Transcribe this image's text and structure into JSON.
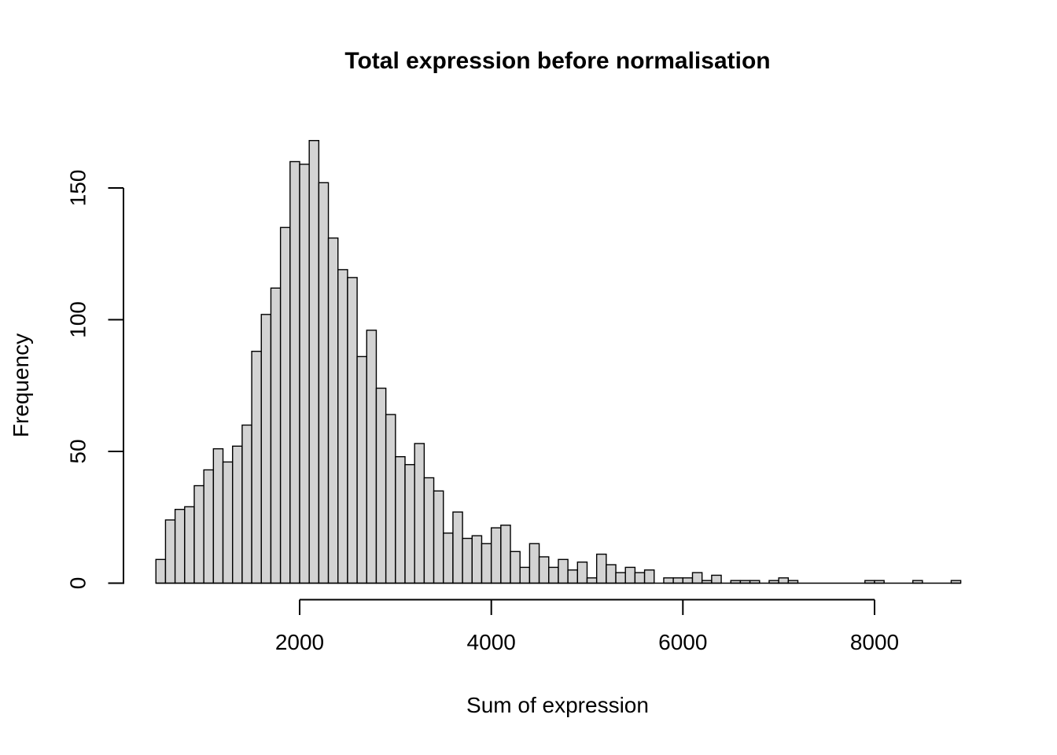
{
  "title": "Total expression before normalisation",
  "chart_data": {
    "type": "bar",
    "subtype": "histogram",
    "title": "Total expression before normalisation",
    "xlabel": "Sum of expression",
    "ylabel": "Frequency",
    "bins": {
      "start": 500,
      "width": 100,
      "count": 84
    },
    "counts": [
      9,
      24,
      28,
      29,
      37,
      43,
      51,
      46,
      52,
      60,
      88,
      102,
      112,
      135,
      160,
      159,
      168,
      152,
      131,
      119,
      116,
      86,
      96,
      74,
      64,
      48,
      45,
      53,
      40,
      35,
      19,
      27,
      17,
      18,
      15,
      21,
      22,
      12,
      6,
      15,
      10,
      6,
      9,
      5,
      8,
      2,
      11,
      7,
      4,
      6,
      4,
      5,
      0,
      2,
      2,
      2,
      4,
      1,
      3,
      0,
      1,
      1,
      1,
      0,
      1,
      2,
      1,
      0,
      0,
      0,
      0,
      0,
      0,
      0,
      1,
      1,
      0,
      0,
      0,
      1,
      0,
      0,
      0,
      1
    ],
    "x_ticks": [
      2000,
      4000,
      6000,
      8000
    ],
    "y_ticks": [
      0,
      50,
      100,
      150
    ],
    "xlim": [
      500,
      8900
    ],
    "ylim": [
      0,
      168
    ],
    "grid": false,
    "legend": "none",
    "bar_fill": "#d3d3d3",
    "bar_border": "#000000",
    "axis_color": "#000000",
    "background": "#ffffff"
  }
}
